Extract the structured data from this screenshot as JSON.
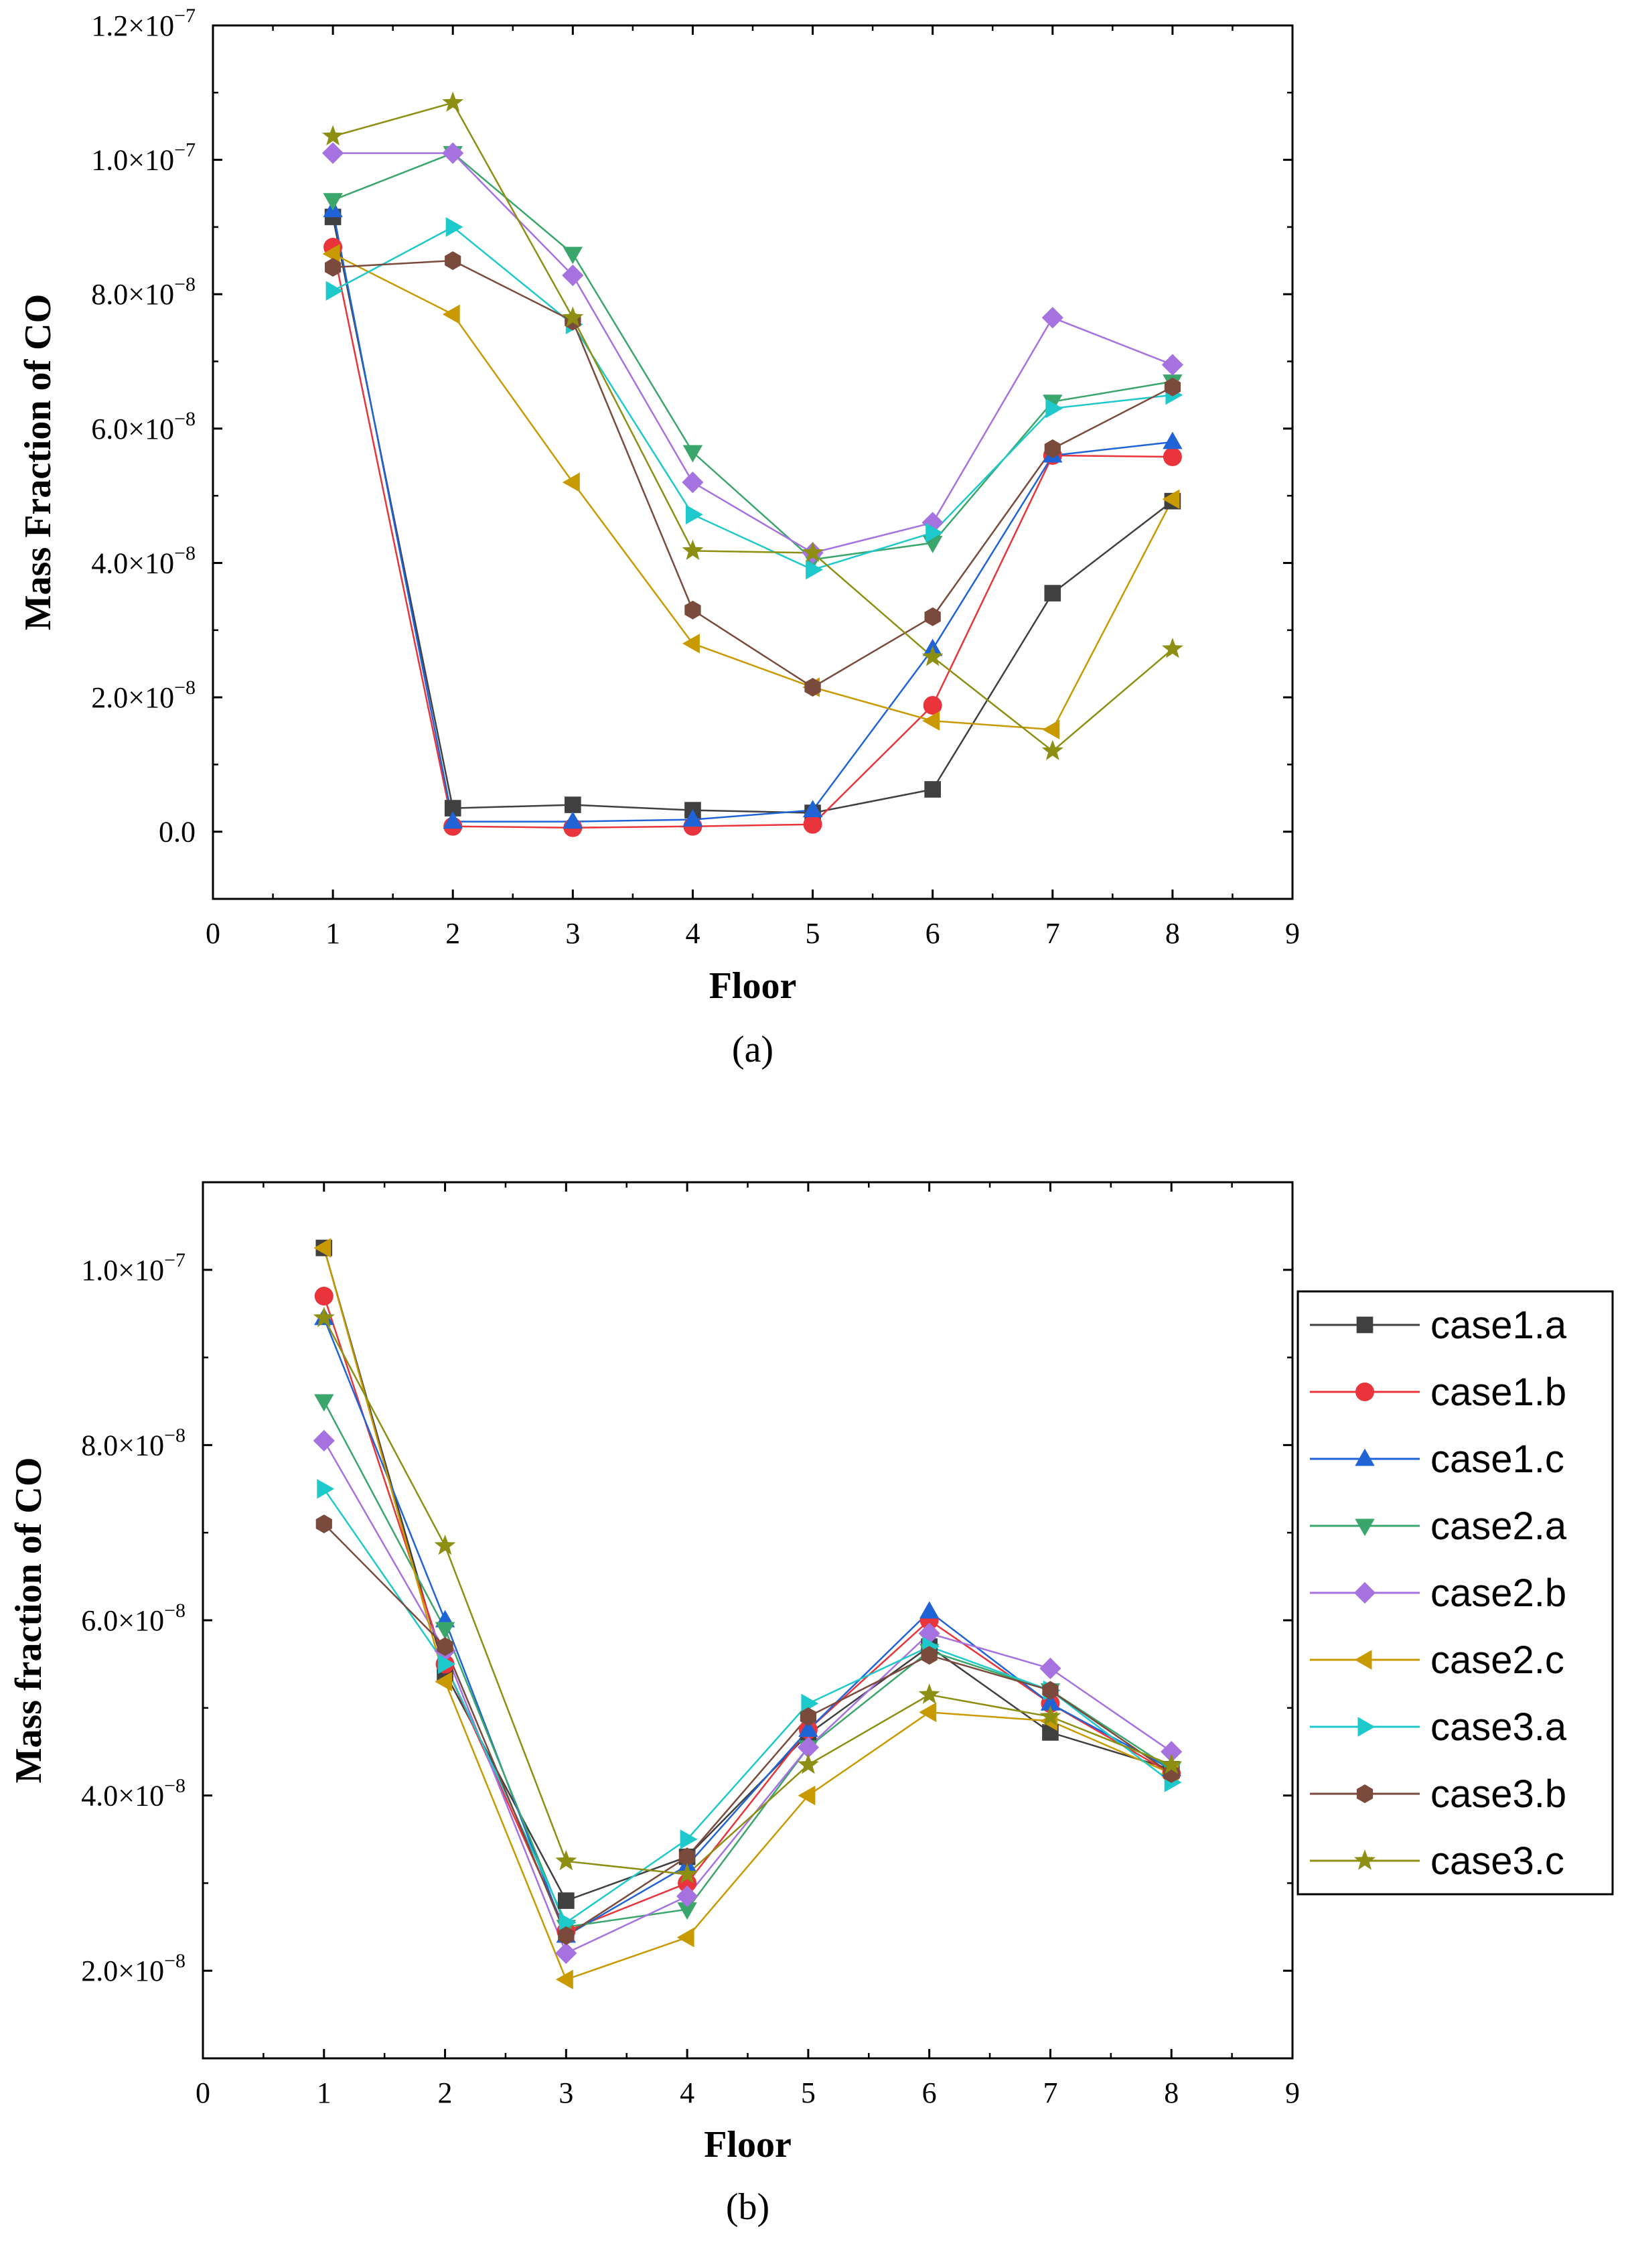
{
  "chart_data": [
    {
      "panel": "(a)",
      "type": "line",
      "xlabel": "Floor",
      "ylabel": "Mass Fraction of CO",
      "xlim": [
        0,
        9
      ],
      "ylim": [
        -1e-08,
        1.2e-07
      ],
      "x_ticks": [
        "0",
        "1",
        "2",
        "3",
        "4",
        "5",
        "6",
        "7",
        "8",
        "9"
      ],
      "y_ticks": [
        {
          "v": 0,
          "m": "0.0",
          "e": ""
        },
        {
          "v": 2e-08,
          "m": "2.0×10",
          "e": "−8"
        },
        {
          "v": 4e-08,
          "m": "4.0×10",
          "e": "−8"
        },
        {
          "v": 6e-08,
          "m": "6.0×10",
          "e": "−8"
        },
        {
          "v": 8e-08,
          "m": "8.0×10",
          "e": "−8"
        },
        {
          "v": 1e-07,
          "m": "1.0×10",
          "e": "−7"
        },
        {
          "v": 1.2e-07,
          "m": "1.2×10",
          "e": "−7"
        }
      ],
      "x": [
        1,
        2,
        3,
        4,
        5,
        6,
        7,
        8
      ],
      "series": [
        {
          "name": "case1.a",
          "values": [
            9.15e-08,
            3.5e-09,
            4e-09,
            3.2e-09,
            2.8e-09,
            6.3e-09,
            3.55e-08,
            4.92e-08
          ]
        },
        {
          "name": "case1.b",
          "values": [
            8.7e-08,
            8e-10,
            6e-10,
            8e-10,
            1.1e-09,
            1.88e-08,
            5.6e-08,
            5.58e-08
          ]
        },
        {
          "name": "case1.c",
          "values": [
            9.25e-08,
            1.5e-09,
            1.5e-09,
            1.8e-09,
            3.2e-09,
            2.72e-08,
            5.6e-08,
            5.8e-08
          ]
        },
        {
          "name": "case2.a",
          "values": [
            9.4e-08,
            1.01e-07,
            8.6e-08,
            5.65e-08,
            4.05e-08,
            4.3e-08,
            6.4e-08,
            6.7e-08
          ]
        },
        {
          "name": "case2.b",
          "values": [
            1.01e-07,
            1.01e-07,
            8.28e-08,
            5.2e-08,
            4.15e-08,
            4.6e-08,
            7.65e-08,
            6.95e-08
          ]
        },
        {
          "name": "case2.c",
          "values": [
            8.6e-08,
            7.7e-08,
            5.2e-08,
            2.8e-08,
            2.15e-08,
            1.65e-08,
            1.52e-08,
            4.95e-08
          ]
        },
        {
          "name": "case3.a",
          "values": [
            8.05e-08,
            9e-08,
            7.55e-08,
            4.72e-08,
            3.9e-08,
            4.45e-08,
            6.3e-08,
            6.5e-08
          ]
        },
        {
          "name": "case3.b",
          "values": [
            8.4e-08,
            8.5e-08,
            7.6e-08,
            3.3e-08,
            2.15e-08,
            3.2e-08,
            5.7e-08,
            6.62e-08
          ]
        },
        {
          "name": "case3.c",
          "values": [
            1.035e-07,
            1.085e-07,
            7.65e-08,
            4.18e-08,
            4.15e-08,
            2.6e-08,
            1.2e-08,
            2.72e-08
          ]
        }
      ]
    },
    {
      "panel": "(b)",
      "type": "line",
      "xlabel": "Floor",
      "ylabel": "Mass fraction of CO",
      "xlim": [
        0,
        9
      ],
      "ylim": [
        1e-08,
        1.1e-07
      ],
      "x_ticks": [
        "0",
        "1",
        "2",
        "3",
        "4",
        "5",
        "6",
        "7",
        "8",
        "9"
      ],
      "y_ticks": [
        {
          "v": 2e-08,
          "m": "2.0×10",
          "e": "−8"
        },
        {
          "v": 4e-08,
          "m": "4.0×10",
          "e": "−8"
        },
        {
          "v": 6e-08,
          "m": "6.0×10",
          "e": "−8"
        },
        {
          "v": 8e-08,
          "m": "8.0×10",
          "e": "−8"
        },
        {
          "v": 1e-07,
          "m": "1.0×10",
          "e": "−7"
        }
      ],
      "x": [
        1,
        2,
        3,
        4,
        5,
        6,
        7,
        8
      ],
      "series": [
        {
          "name": "case1.a",
          "values": [
            1.025e-07,
            5.4e-08,
            2.8e-08,
            3.3e-08,
            4.7e-08,
            5.7e-08,
            4.72e-08,
            4.3e-08
          ]
        },
        {
          "name": "case1.b",
          "values": [
            9.7e-08,
            5.5e-08,
            2.45e-08,
            3e-08,
            4.75e-08,
            6e-08,
            5.05e-08,
            4.25e-08
          ]
        },
        {
          "name": "case1.c",
          "values": [
            9.45e-08,
            6e-08,
            2.4e-08,
            3.2e-08,
            4.75e-08,
            6.1e-08,
            5.05e-08,
            4.3e-08
          ]
        },
        {
          "name": "case2.a",
          "values": [
            8.5e-08,
            5.9e-08,
            2.5e-08,
            2.7e-08,
            4.55e-08,
            5.65e-08,
            5.2e-08,
            4.3e-08
          ]
        },
        {
          "name": "case2.b",
          "values": [
            8.05e-08,
            5.65e-08,
            2.2e-08,
            2.85e-08,
            4.55e-08,
            5.85e-08,
            5.45e-08,
            4.5e-08
          ]
        },
        {
          "name": "case2.c",
          "values": [
            1.025e-07,
            5.3e-08,
            1.9e-08,
            2.38e-08,
            4e-08,
            4.95e-08,
            4.85e-08,
            4.25e-08
          ]
        },
        {
          "name": "case3.a",
          "values": [
            7.5e-08,
            5.5e-08,
            2.55e-08,
            3.5e-08,
            5.05e-08,
            5.7e-08,
            5.2e-08,
            4.15e-08
          ]
        },
        {
          "name": "case3.b",
          "values": [
            7.1e-08,
            5.7e-08,
            2.4e-08,
            3.3e-08,
            4.9e-08,
            5.6e-08,
            5.2e-08,
            4.25e-08
          ]
        },
        {
          "name": "case3.c",
          "values": [
            9.45e-08,
            6.85e-08,
            3.25e-08,
            3.1e-08,
            4.35e-08,
            5.15e-08,
            4.9e-08,
            4.35e-08
          ]
        }
      ]
    }
  ],
  "legend": {
    "items": [
      {
        "name": "case1.a",
        "color": "#404040",
        "marker": "square"
      },
      {
        "name": "case1.b",
        "color": "#e8343a",
        "marker": "circle"
      },
      {
        "name": "case1.c",
        "color": "#1f63d6",
        "marker": "triangle-up"
      },
      {
        "name": "case2.a",
        "color": "#3aa66b",
        "marker": "triangle-down"
      },
      {
        "name": "case2.b",
        "color": "#a572e0",
        "marker": "diamond"
      },
      {
        "name": "case2.c",
        "color": "#c99a00",
        "marker": "triangle-left"
      },
      {
        "name": "case3.a",
        "color": "#1ec9cc",
        "marker": "triangle-right"
      },
      {
        "name": "case3.b",
        "color": "#7a4a3c",
        "marker": "hexagon"
      },
      {
        "name": "case3.c",
        "color": "#8c8f12",
        "marker": "star"
      }
    ]
  }
}
